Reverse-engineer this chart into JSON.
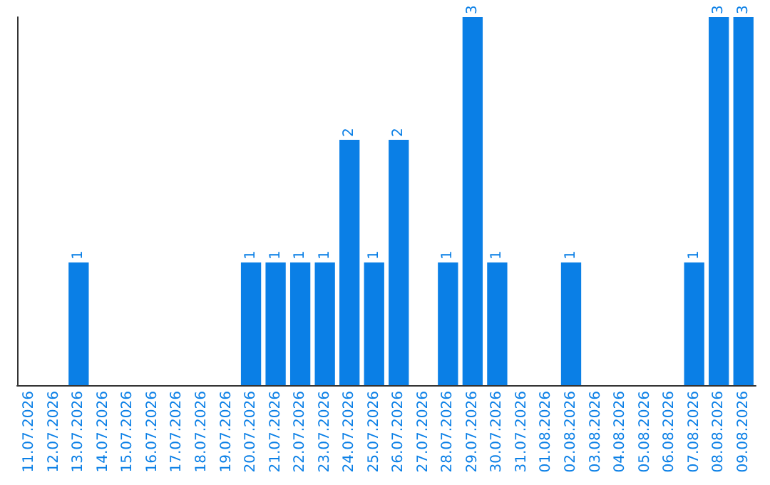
{
  "chart_data": {
    "type": "bar",
    "categories": [
      "11.07.2026",
      "12.07.2026",
      "13.07.2026",
      "14.07.2026",
      "15.07.2026",
      "16.07.2026",
      "17.07.2026",
      "18.07.2026",
      "19.07.2026",
      "20.07.2026",
      "21.07.2026",
      "22.07.2026",
      "23.07.2026",
      "24.07.2026",
      "25.07.2026",
      "26.07.2026",
      "27.07.2026",
      "28.07.2026",
      "29.07.2026",
      "30.07.2026",
      "31.07.2026",
      "01.08.2026",
      "02.08.2026",
      "03.08.2026",
      "04.08.2026",
      "05.08.2026",
      "06.08.2026",
      "07.08.2026",
      "08.08.2026",
      "09.08.2026"
    ],
    "values": [
      0,
      0,
      1,
      0,
      0,
      0,
      0,
      0,
      0,
      1,
      1,
      1,
      1,
      2,
      1,
      2,
      0,
      1,
      3,
      1,
      0,
      0,
      1,
      0,
      0,
      0,
      0,
      1,
      3,
      3
    ],
    "value_labels": [
      null,
      null,
      "1",
      null,
      null,
      null,
      null,
      null,
      null,
      "1",
      "1",
      "1",
      "1",
      "2",
      "1",
      "2",
      null,
      "1",
      "3",
      "1",
      null,
      null,
      "1",
      null,
      null,
      null,
      null,
      "1",
      "3",
      "3"
    ],
    "color": "#0a7fe6",
    "ylim": [
      0,
      3
    ],
    "grid": false,
    "tick_labels": "x"
  }
}
